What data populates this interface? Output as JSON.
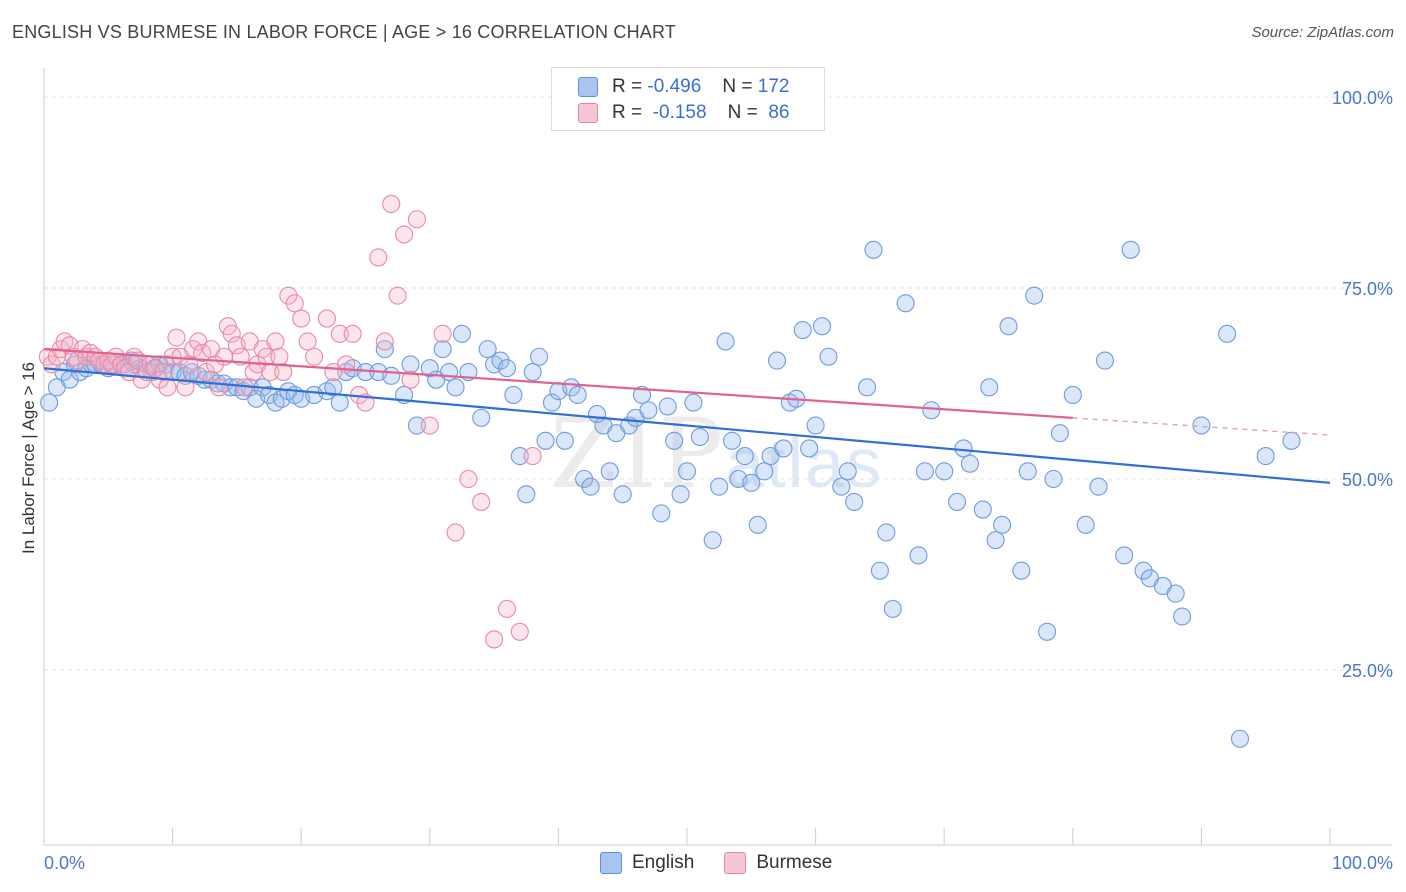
{
  "title": "ENGLISH VS BURMESE IN LABOR FORCE | AGE > 16 CORRELATION CHART",
  "source": "Source: ZipAtlas.com",
  "legend": {
    "rows": [
      {
        "r_label": "R =",
        "r_value": "-0.496",
        "n_label": "N =",
        "n_value": "172",
        "color": "#a9c4f0"
      },
      {
        "r_label": "R =",
        "r_value": " -0.158",
        "n_label": "N =",
        "n_value": " 86",
        "color": "#f5b3c8"
      }
    ]
  },
  "bottom_legend": {
    "english": "English",
    "burmese": "Burmese"
  },
  "watermark": {
    "zip": "ZIP",
    "atlas": "atlas"
  },
  "chart_data": {
    "type": "scatter",
    "title": "ENGLISH VS BURMESE IN LABOR FORCE | AGE > 16 CORRELATION CHART",
    "xlabel": "",
    "ylabel": "In Labor Force | Age > 16",
    "x_tick_labels": [
      "0.0%",
      "100.0%"
    ],
    "y_tick_labels": [
      "25.0%",
      "50.0%",
      "75.0%",
      "100.0%"
    ],
    "xlim": [
      0,
      100
    ],
    "ylim": [
      0,
      100
    ],
    "grid": true,
    "colors": {
      "english": "#3a78d8",
      "burmese": "#e8769e"
    },
    "series": [
      {
        "name": "English",
        "trend": {
          "x": [
            0,
            100
          ],
          "y": [
            64.5,
            49.5
          ],
          "style": "solid"
        },
        "points": [
          [
            0.4,
            60
          ],
          [
            1,
            62
          ],
          [
            1.5,
            64
          ],
          [
            2,
            63
          ],
          [
            2.4,
            65
          ],
          [
            2.8,
            64
          ],
          [
            3.3,
            64.5
          ],
          [
            3.7,
            65
          ],
          [
            4,
            65
          ],
          [
            4.5,
            65
          ],
          [
            5,
            64.5
          ],
          [
            5.5,
            65
          ],
          [
            6,
            65
          ],
          [
            6.3,
            65
          ],
          [
            6.8,
            65.5
          ],
          [
            7,
            65
          ],
          [
            7.5,
            64.5
          ],
          [
            8,
            65
          ],
          [
            8.4,
            64
          ],
          [
            8.7,
            64.5
          ],
          [
            9,
            65
          ],
          [
            9.5,
            65
          ],
          [
            10,
            64
          ],
          [
            10.5,
            64
          ],
          [
            11,
            63.5
          ],
          [
            11.5,
            64
          ],
          [
            12,
            63.5
          ],
          [
            12.5,
            63
          ],
          [
            13,
            63
          ],
          [
            13.5,
            62.5
          ],
          [
            14,
            62.5
          ],
          [
            14.5,
            62
          ],
          [
            15,
            62
          ],
          [
            15.5,
            61.5
          ],
          [
            16,
            62
          ],
          [
            16.5,
            60.5
          ],
          [
            17,
            62
          ],
          [
            17.5,
            61
          ],
          [
            18,
            60
          ],
          [
            18.5,
            60.5
          ],
          [
            19,
            61.5
          ],
          [
            19.5,
            61
          ],
          [
            20,
            60.5
          ],
          [
            21,
            61
          ],
          [
            22,
            61.5
          ],
          [
            22.5,
            62
          ],
          [
            23,
            60
          ],
          [
            23.5,
            64
          ],
          [
            24,
            64.5
          ],
          [
            25,
            64
          ],
          [
            26,
            64
          ],
          [
            26.5,
            67
          ],
          [
            27,
            63.5
          ],
          [
            28,
            61
          ],
          [
            28.5,
            65
          ],
          [
            29,
            57
          ],
          [
            30,
            64.5
          ],
          [
            30.5,
            63
          ],
          [
            31,
            67
          ],
          [
            31.5,
            64
          ],
          [
            32,
            62
          ],
          [
            32.5,
            69
          ],
          [
            33,
            64
          ],
          [
            34,
            58
          ],
          [
            34.5,
            67
          ],
          [
            35,
            65
          ],
          [
            35.5,
            65.5
          ],
          [
            36,
            64.5
          ],
          [
            36.5,
            61
          ],
          [
            37,
            53
          ],
          [
            37.5,
            48
          ],
          [
            38,
            64
          ],
          [
            38.5,
            66
          ],
          [
            39,
            55
          ],
          [
            39.5,
            60
          ],
          [
            40,
            61.5
          ],
          [
            40.5,
            55
          ],
          [
            41,
            62
          ],
          [
            41.5,
            61
          ],
          [
            42,
            50
          ],
          [
            42.5,
            49
          ],
          [
            43,
            58.5
          ],
          [
            43.5,
            57
          ],
          [
            44,
            51
          ],
          [
            44.5,
            56
          ],
          [
            45,
            48
          ],
          [
            45.5,
            57
          ],
          [
            46,
            58
          ],
          [
            46.5,
            61
          ],
          [
            47,
            59
          ],
          [
            48,
            45.5
          ],
          [
            48.5,
            59.5
          ],
          [
            49,
            55
          ],
          [
            49.5,
            48
          ],
          [
            50,
            51
          ],
          [
            50.5,
            60
          ],
          [
            51,
            55.5
          ],
          [
            52,
            42
          ],
          [
            52.5,
            49
          ],
          [
            53,
            68
          ],
          [
            53.5,
            55
          ],
          [
            54,
            50
          ],
          [
            54.5,
            53
          ],
          [
            55,
            49.5
          ],
          [
            55.5,
            44
          ],
          [
            56,
            51
          ],
          [
            56.5,
            53
          ],
          [
            57,
            65.5
          ],
          [
            57.5,
            54
          ],
          [
            58,
            60
          ],
          [
            58.5,
            60.5
          ],
          [
            59,
            69.5
          ],
          [
            59.5,
            54
          ],
          [
            60,
            57
          ],
          [
            60.5,
            70
          ],
          [
            61,
            66
          ],
          [
            62,
            49
          ],
          [
            62.5,
            51
          ],
          [
            63,
            47
          ],
          [
            64,
            62
          ],
          [
            64.5,
            80
          ],
          [
            65,
            38
          ],
          [
            65.5,
            43
          ],
          [
            66,
            33
          ],
          [
            67,
            73
          ],
          [
            68,
            40
          ],
          [
            68.5,
            51
          ],
          [
            69,
            59
          ],
          [
            70,
            51
          ],
          [
            71,
            47
          ],
          [
            71.5,
            54
          ],
          [
            72,
            52
          ],
          [
            73,
            46
          ],
          [
            73.5,
            62
          ],
          [
            74,
            42
          ],
          [
            74.5,
            44
          ],
          [
            75,
            70
          ],
          [
            76,
            38
          ],
          [
            76.5,
            51
          ],
          [
            77,
            74
          ],
          [
            78,
            30
          ],
          [
            78.5,
            50
          ],
          [
            79,
            56
          ],
          [
            80,
            61
          ],
          [
            81,
            44
          ],
          [
            82,
            49
          ],
          [
            82.5,
            65.5
          ],
          [
            84,
            40
          ],
          [
            84.5,
            80
          ],
          [
            85.5,
            38
          ],
          [
            86,
            37
          ],
          [
            87,
            36
          ],
          [
            88,
            35
          ],
          [
            88.5,
            32
          ],
          [
            90,
            57
          ],
          [
            92,
            69
          ],
          [
            93,
            16
          ],
          [
            95,
            53
          ],
          [
            97,
            55
          ]
        ]
      },
      {
        "name": "Burmese",
        "trend": {
          "x": [
            0,
            80
          ],
          "y": [
            67,
            58
          ],
          "style": "solid",
          "dashed_to": 100
        },
        "points": [
          [
            0.3,
            66
          ],
          [
            0.6,
            65
          ],
          [
            1,
            66
          ],
          [
            1.3,
            67
          ],
          [
            1.6,
            68
          ],
          [
            2,
            67.5
          ],
          [
            2.3,
            66
          ],
          [
            2.6,
            65.5
          ],
          [
            3,
            67
          ],
          [
            3.3,
            66
          ],
          [
            3.6,
            66.5
          ],
          [
            4,
            66
          ],
          [
            4.3,
            65.5
          ],
          [
            4.7,
            65
          ],
          [
            5,
            65.5
          ],
          [
            5.3,
            65
          ],
          [
            5.6,
            66
          ],
          [
            6,
            65
          ],
          [
            6.3,
            64.5
          ],
          [
            6.6,
            64
          ],
          [
            7,
            66
          ],
          [
            7.3,
            65.5
          ],
          [
            7.6,
            63
          ],
          [
            8,
            64
          ],
          [
            8.3,
            65
          ],
          [
            8.6,
            64.5
          ],
          [
            9,
            63
          ],
          [
            9.3,
            64
          ],
          [
            9.6,
            62
          ],
          [
            10,
            66
          ],
          [
            10.3,
            68.5
          ],
          [
            10.6,
            66
          ],
          [
            11,
            62
          ],
          [
            11.3,
            65
          ],
          [
            11.6,
            67
          ],
          [
            12,
            68
          ],
          [
            12.3,
            66.5
          ],
          [
            12.6,
            64
          ],
          [
            13,
            67
          ],
          [
            13.3,
            65
          ],
          [
            13.6,
            62
          ],
          [
            14,
            66
          ],
          [
            14.3,
            70
          ],
          [
            14.6,
            69
          ],
          [
            15,
            67.5
          ],
          [
            15.3,
            66
          ],
          [
            15.6,
            62
          ],
          [
            16,
            68
          ],
          [
            16.3,
            64
          ],
          [
            16.6,
            65
          ],
          [
            17,
            67
          ],
          [
            17.3,
            66
          ],
          [
            17.6,
            64
          ],
          [
            18,
            68
          ],
          [
            18.3,
            66
          ],
          [
            18.6,
            64
          ],
          [
            19,
            74
          ],
          [
            19.5,
            73
          ],
          [
            20,
            71
          ],
          [
            20.5,
            68
          ],
          [
            21,
            66
          ],
          [
            22,
            71
          ],
          [
            22.5,
            64
          ],
          [
            23,
            69
          ],
          [
            23.5,
            65
          ],
          [
            24,
            69
          ],
          [
            24.5,
            61
          ],
          [
            25,
            60
          ],
          [
            26,
            79
          ],
          [
            26.5,
            68
          ],
          [
            27,
            86
          ],
          [
            27.5,
            74
          ],
          [
            28,
            82
          ],
          [
            28.5,
            63
          ],
          [
            29,
            84
          ],
          [
            30,
            57
          ],
          [
            31,
            69
          ],
          [
            32,
            43
          ],
          [
            33,
            50
          ],
          [
            34,
            47
          ],
          [
            35,
            29
          ],
          [
            36,
            33
          ],
          [
            37,
            30
          ],
          [
            38,
            53
          ]
        ]
      }
    ]
  }
}
